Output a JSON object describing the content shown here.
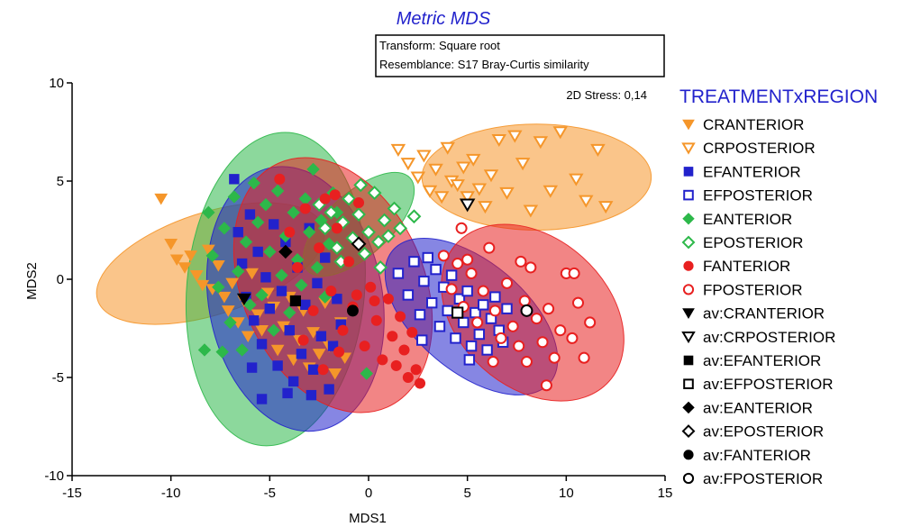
{
  "chart_data": {
    "type": "scatter",
    "title": "Metric MDS",
    "info_lines": [
      "Transform: Square root",
      "Resemblance: S17 Bray-Curtis similarity"
    ],
    "stress_label": "2D Stress: 0,14",
    "xlabel": "MDS1",
    "ylabel": "MDS2",
    "xlim": [
      -15,
      15
    ],
    "ylim": [
      -10,
      10
    ],
    "xticks": [
      -15,
      -10,
      -5,
      0,
      5,
      10,
      15
    ],
    "yticks": [
      -10,
      -5,
      0,
      5,
      10
    ],
    "tick_labels_x": [
      "-15",
      "-10",
      "-5",
      "0",
      "5",
      "10",
      "15"
    ],
    "tick_labels_y": [
      "-10",
      "-5",
      "0",
      "5",
      "10"
    ],
    "legend_title": "TREATMENTxREGION",
    "legend_position": "right",
    "hulls": [
      {
        "group": "CRANTERIOR",
        "color": "#f5962a",
        "cx": -8.0,
        "cy": 0.8,
        "rx": 6.0,
        "ry": 2.6,
        "angle_deg": -18
      },
      {
        "group": "CRPOSTERIOR",
        "color": "#f5962a",
        "cx": 8.5,
        "cy": 5.2,
        "rx": 5.8,
        "ry": 2.7,
        "angle_deg": 0
      },
      {
        "group": "EANTERIOR",
        "color": "#2db84a",
        "cx": -4.7,
        "cy": -0.5,
        "rx": 4.5,
        "ry": 8.0,
        "angle_deg": 5
      },
      {
        "group": "EFANTERIOR",
        "color": "#2222cc",
        "cx": -3.7,
        "cy": -1.0,
        "rx": 4.4,
        "ry": 6.8,
        "angle_deg": -10
      },
      {
        "group": "EPOSTERIOR",
        "color": "#2db84a",
        "cx": -0.5,
        "cy": 2.8,
        "rx": 3.5,
        "ry": 1.6,
        "angle_deg": -42
      },
      {
        "group": "FANTERIOR",
        "color": "#e82020",
        "cx": -1.8,
        "cy": -0.3,
        "rx": 4.6,
        "ry": 6.8,
        "angle_deg": -24
      },
      {
        "group": "EFPOSTERIOR",
        "color": "#2222cc",
        "cx": 5.2,
        "cy": -1.9,
        "rx": 5.2,
        "ry": 2.8,
        "angle_deg": 40
      },
      {
        "group": "FPOSTERIOR",
        "color": "#e82020",
        "cx": 8.3,
        "cy": -1.7,
        "rx": 5.2,
        "ry": 3.8,
        "angle_deg": 42
      }
    ],
    "series": [
      {
        "name": "CRANTERIOR",
        "color": "#f5962a",
        "marker": "triangle-down",
        "filled": true,
        "points": [
          [
            -10.5,
            4.1
          ],
          [
            -10.0,
            1.8
          ],
          [
            -9.7,
            1.0
          ],
          [
            -9.3,
            0.6
          ],
          [
            -9.0,
            1.2
          ],
          [
            -8.7,
            0.2
          ],
          [
            -8.4,
            -0.3
          ],
          [
            -8.1,
            1.5
          ],
          [
            -7.9,
            -0.5
          ],
          [
            -7.6,
            0.7
          ],
          [
            -7.3,
            -0.9
          ],
          [
            -7.1,
            -1.6
          ],
          [
            -6.9,
            -0.2
          ],
          [
            -6.6,
            -2.2
          ],
          [
            -6.3,
            -1.1
          ],
          [
            -6.1,
            -2.9
          ],
          [
            -5.9,
            0.3
          ],
          [
            -5.6,
            -1.8
          ],
          [
            -5.4,
            -2.6
          ],
          [
            -5.1,
            -0.7
          ],
          [
            -4.8,
            -1.4
          ],
          [
            -4.6,
            -3.6
          ],
          [
            -4.3,
            -2.4
          ],
          [
            -4.0,
            -0.9
          ],
          [
            -3.8,
            -4.1
          ],
          [
            -3.5,
            -3.1
          ],
          [
            -3.3,
            -1.6
          ],
          [
            -3.0,
            -4.5
          ],
          [
            -2.8,
            -2.7
          ],
          [
            -2.5,
            -3.8
          ],
          [
            -2.2,
            -1.2
          ],
          [
            -2.0,
            -3.4
          ],
          [
            -1.7,
            -4.8
          ],
          [
            -1.4,
            -2.2
          ],
          [
            -1.2,
            -4.0
          ]
        ]
      },
      {
        "name": "CRPOSTERIOR",
        "color": "#f5962a",
        "marker": "triangle-down",
        "filled": false,
        "points": [
          [
            1.5,
            6.6
          ],
          [
            2.0,
            5.9
          ],
          [
            2.5,
            5.2
          ],
          [
            2.8,
            6.3
          ],
          [
            3.1,
            4.5
          ],
          [
            3.4,
            5.6
          ],
          [
            3.7,
            4.2
          ],
          [
            4.0,
            6.7
          ],
          [
            4.2,
            5.0
          ],
          [
            4.5,
            4.8
          ],
          [
            4.8,
            5.7
          ],
          [
            5.0,
            4.2
          ],
          [
            5.3,
            6.1
          ],
          [
            5.6,
            4.6
          ],
          [
            5.9,
            3.7
          ],
          [
            6.2,
            5.3
          ],
          [
            6.6,
            7.1
          ],
          [
            7.0,
            4.4
          ],
          [
            7.4,
            7.3
          ],
          [
            7.8,
            5.9
          ],
          [
            8.2,
            3.5
          ],
          [
            8.7,
            7.0
          ],
          [
            9.2,
            4.5
          ],
          [
            9.7,
            7.5
          ],
          [
            10.5,
            5.1
          ],
          [
            11.0,
            4.0
          ],
          [
            11.6,
            6.6
          ],
          [
            12.0,
            3.7
          ]
        ]
      },
      {
        "name": "EFANTERIOR",
        "color": "#2222cc",
        "marker": "square",
        "filled": true,
        "points": [
          [
            -6.8,
            5.1
          ],
          [
            -6.6,
            2.4
          ],
          [
            -6.4,
            0.8
          ],
          [
            -6.2,
            -0.9
          ],
          [
            -6.0,
            3.3
          ],
          [
            -5.8,
            -2.1
          ],
          [
            -5.6,
            1.4
          ],
          [
            -5.4,
            -3.3
          ],
          [
            -5.2,
            0.1
          ],
          [
            -5.0,
            -1.5
          ],
          [
            -4.8,
            2.8
          ],
          [
            -4.6,
            -4.4
          ],
          [
            -4.4,
            -0.6
          ],
          [
            -4.2,
            1.9
          ],
          [
            -4.0,
            -2.6
          ],
          [
            -3.8,
            -5.2
          ],
          [
            -3.6,
            0.6
          ],
          [
            -3.4,
            -3.8
          ],
          [
            -3.2,
            -1.3
          ],
          [
            -3.0,
            2.6
          ],
          [
            -2.8,
            -4.6
          ],
          [
            -2.6,
            -0.2
          ],
          [
            -2.4,
            -2.9
          ],
          [
            -2.2,
            1.1
          ],
          [
            -2.0,
            -5.6
          ],
          [
            -1.8,
            -3.4
          ],
          [
            -1.6,
            -1.0
          ],
          [
            -1.4,
            -2.3
          ],
          [
            -5.4,
            -6.1
          ],
          [
            -4.1,
            -5.8
          ],
          [
            -2.9,
            -5.9
          ],
          [
            -5.9,
            -4.5
          ]
        ]
      },
      {
        "name": "EFPOSTERIOR",
        "color": "#2222cc",
        "marker": "square",
        "filled": false,
        "points": [
          [
            1.5,
            0.3
          ],
          [
            2.0,
            -0.8
          ],
          [
            2.3,
            0.9
          ],
          [
            2.6,
            -1.8
          ],
          [
            2.8,
            -0.1
          ],
          [
            3.0,
            1.1
          ],
          [
            3.2,
            -1.2
          ],
          [
            3.4,
            0.5
          ],
          [
            3.6,
            -2.4
          ],
          [
            3.8,
            -0.4
          ],
          [
            4.0,
            -1.6
          ],
          [
            4.2,
            0.2
          ],
          [
            4.4,
            -3.0
          ],
          [
            4.6,
            -1.0
          ],
          [
            4.8,
            -2.2
          ],
          [
            5.0,
            -0.6
          ],
          [
            5.2,
            -3.4
          ],
          [
            5.4,
            -1.7
          ],
          [
            5.6,
            -2.8
          ],
          [
            5.8,
            -1.3
          ],
          [
            6.0,
            -3.6
          ],
          [
            6.2,
            -2.0
          ],
          [
            6.4,
            -0.9
          ],
          [
            6.6,
            -2.6
          ],
          [
            6.8,
            -3.2
          ],
          [
            7.0,
            -1.5
          ],
          [
            2.7,
            -3.1
          ],
          [
            5.1,
            -4.1
          ]
        ]
      },
      {
        "name": "EANTERIOR",
        "color": "#2db84a",
        "marker": "diamond",
        "filled": true,
        "points": [
          [
            -8.1,
            3.4
          ],
          [
            -7.9,
            1.2
          ],
          [
            -7.6,
            -0.4
          ],
          [
            -7.3,
            2.6
          ],
          [
            -7.0,
            -2.2
          ],
          [
            -6.8,
            4.2
          ],
          [
            -6.6,
            0.4
          ],
          [
            -6.4,
            -3.6
          ],
          [
            -6.2,
            1.9
          ],
          [
            -6.0,
            -1.3
          ],
          [
            -5.8,
            4.9
          ],
          [
            -5.6,
            2.9
          ],
          [
            -5.4,
            -0.8
          ],
          [
            -5.2,
            3.8
          ],
          [
            -5.0,
            1.4
          ],
          [
            -4.8,
            -2.6
          ],
          [
            -4.6,
            4.5
          ],
          [
            -4.4,
            0.2
          ],
          [
            -4.2,
            2.2
          ],
          [
            -4.0,
            -1.7
          ],
          [
            -3.8,
            3.4
          ],
          [
            -3.6,
            1.0
          ],
          [
            -3.4,
            -0.3
          ],
          [
            -3.2,
            4.1
          ],
          [
            -3.0,
            2.4
          ],
          [
            -2.8,
            5.6
          ],
          [
            -2.6,
            0.6
          ],
          [
            -2.4,
            3.0
          ],
          [
            -2.2,
            -0.9
          ],
          [
            -2.0,
            1.8
          ],
          [
            -1.8,
            4.4
          ],
          [
            -1.6,
            3.4
          ],
          [
            -8.3,
            -3.6
          ],
          [
            -7.4,
            -3.7
          ],
          [
            -0.1,
            -4.8
          ]
        ]
      },
      {
        "name": "EPOSTERIOR",
        "color": "#2db84a",
        "marker": "diamond",
        "filled": false,
        "points": [
          [
            -2.5,
            3.8
          ],
          [
            -2.2,
            2.6
          ],
          [
            -1.9,
            3.4
          ],
          [
            -1.6,
            1.6
          ],
          [
            -1.3,
            2.9
          ],
          [
            -1.0,
            4.1
          ],
          [
            -0.8,
            2.1
          ],
          [
            -0.5,
            3.3
          ],
          [
            -0.2,
            1.3
          ],
          [
            0.0,
            2.4
          ],
          [
            0.3,
            4.4
          ],
          [
            0.5,
            1.9
          ],
          [
            0.8,
            3.0
          ],
          [
            1.0,
            2.2
          ],
          [
            1.3,
            3.6
          ],
          [
            1.6,
            2.6
          ],
          [
            -1.4,
            0.9
          ],
          [
            0.6,
            0.6
          ],
          [
            2.3,
            3.2
          ],
          [
            -0.4,
            4.8
          ]
        ]
      },
      {
        "name": "FANTERIOR",
        "color": "#e82020",
        "marker": "circle",
        "filled": true,
        "points": [
          [
            -4.5,
            5.1
          ],
          [
            -4.0,
            2.4
          ],
          [
            -3.6,
            0.6
          ],
          [
            -3.2,
            3.6
          ],
          [
            -2.8,
            -1.6
          ],
          [
            -2.5,
            1.6
          ],
          [
            -2.2,
            4.1
          ],
          [
            -1.9,
            -0.6
          ],
          [
            -1.6,
            2.6
          ],
          [
            -1.3,
            -2.6
          ],
          [
            -1.0,
            0.9
          ],
          [
            -0.8,
            -1.4
          ],
          [
            -0.5,
            3.9
          ],
          [
            -0.2,
            -3.4
          ],
          [
            0.1,
            -0.4
          ],
          [
            0.4,
            -2.1
          ],
          [
            0.7,
            -4.1
          ],
          [
            1.0,
            -1.0
          ],
          [
            1.2,
            -2.9
          ],
          [
            1.4,
            -4.4
          ],
          [
            1.6,
            -1.9
          ],
          [
            1.8,
            -3.6
          ],
          [
            2.0,
            -5.0
          ],
          [
            2.2,
            -2.7
          ],
          [
            2.4,
            -4.6
          ],
          [
            2.6,
            -5.3
          ],
          [
            -3.3,
            -3.1
          ],
          [
            -2.3,
            -4.6
          ],
          [
            -1.7,
            4.3
          ],
          [
            -0.6,
            -0.8
          ],
          [
            0.3,
            -1.1
          ],
          [
            -1.5,
            -3.7
          ]
        ]
      },
      {
        "name": "FPOSTERIOR",
        "color": "#e82020",
        "marker": "circle",
        "filled": false,
        "points": [
          [
            3.8,
            1.2
          ],
          [
            4.2,
            -0.5
          ],
          [
            4.5,
            0.8
          ],
          [
            4.8,
            -1.4
          ],
          [
            5.2,
            0.3
          ],
          [
            5.5,
            -2.2
          ],
          [
            5.8,
            -0.6
          ],
          [
            6.1,
            1.6
          ],
          [
            6.4,
            -1.6
          ],
          [
            6.7,
            -3.0
          ],
          [
            7.0,
            -0.2
          ],
          [
            7.3,
            -2.4
          ],
          [
            7.6,
            -3.4
          ],
          [
            7.9,
            -1.1
          ],
          [
            8.2,
            0.6
          ],
          [
            8.5,
            -2.0
          ],
          [
            8.8,
            -3.2
          ],
          [
            9.1,
            -1.5
          ],
          [
            9.4,
            -4.0
          ],
          [
            9.7,
            -2.6
          ],
          [
            10.0,
            0.3
          ],
          [
            10.3,
            -3.0
          ],
          [
            10.6,
            -1.2
          ],
          [
            10.9,
            -4.0
          ],
          [
            11.2,
            -2.2
          ],
          [
            9.0,
            -5.4
          ],
          [
            8.0,
            -4.2
          ],
          [
            6.3,
            -4.2
          ],
          [
            10.4,
            0.3
          ],
          [
            4.7,
            2.6
          ],
          [
            5.0,
            1.0
          ],
          [
            7.7,
            0.9
          ]
        ]
      },
      {
        "name": "av:CRANTERIOR",
        "color": "#000000",
        "marker": "triangle-down",
        "filled": true,
        "points": [
          [
            -6.3,
            -1.0
          ]
        ]
      },
      {
        "name": "av:CRPOSTERIOR",
        "color": "#000000",
        "marker": "triangle-down",
        "filled": false,
        "points": [
          [
            5.0,
            3.8
          ]
        ]
      },
      {
        "name": "av:EFANTERIOR",
        "color": "#000000",
        "marker": "square",
        "filled": true,
        "points": [
          [
            -3.7,
            -1.1
          ]
        ]
      },
      {
        "name": "av:EFPOSTERIOR",
        "color": "#000000",
        "marker": "square",
        "filled": false,
        "points": [
          [
            4.5,
            -1.7
          ]
        ]
      },
      {
        "name": "av:EANTERIOR",
        "color": "#000000",
        "marker": "diamond",
        "filled": true,
        "points": [
          [
            -4.2,
            1.4
          ]
        ]
      },
      {
        "name": "av:EPOSTERIOR",
        "color": "#000000",
        "marker": "diamond",
        "filled": false,
        "points": [
          [
            -0.5,
            1.8
          ]
        ]
      },
      {
        "name": "av:FANTERIOR",
        "color": "#000000",
        "marker": "circle",
        "filled": true,
        "points": [
          [
            -0.8,
            -1.6
          ]
        ]
      },
      {
        "name": "av:FPOSTERIOR",
        "color": "#000000",
        "marker": "circle",
        "filled": false,
        "points": [
          [
            8.0,
            -1.6
          ]
        ]
      }
    ]
  }
}
